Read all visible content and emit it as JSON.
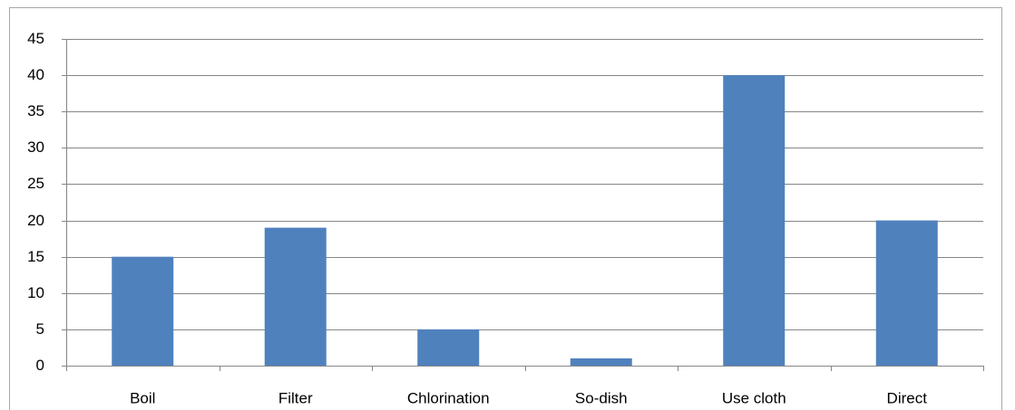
{
  "chart_data": {
    "type": "bar",
    "categories": [
      "Boil",
      "Filter",
      "Chlorination",
      "So-dish",
      "Use cloth",
      "Direct"
    ],
    "values": [
      15,
      19,
      5,
      1,
      40,
      20
    ],
    "color": "#4f81bd",
    "ylim": [
      0,
      45
    ],
    "yticks": [
      0,
      5,
      10,
      15,
      20,
      25,
      30,
      35,
      40,
      45
    ],
    "grid": true
  }
}
